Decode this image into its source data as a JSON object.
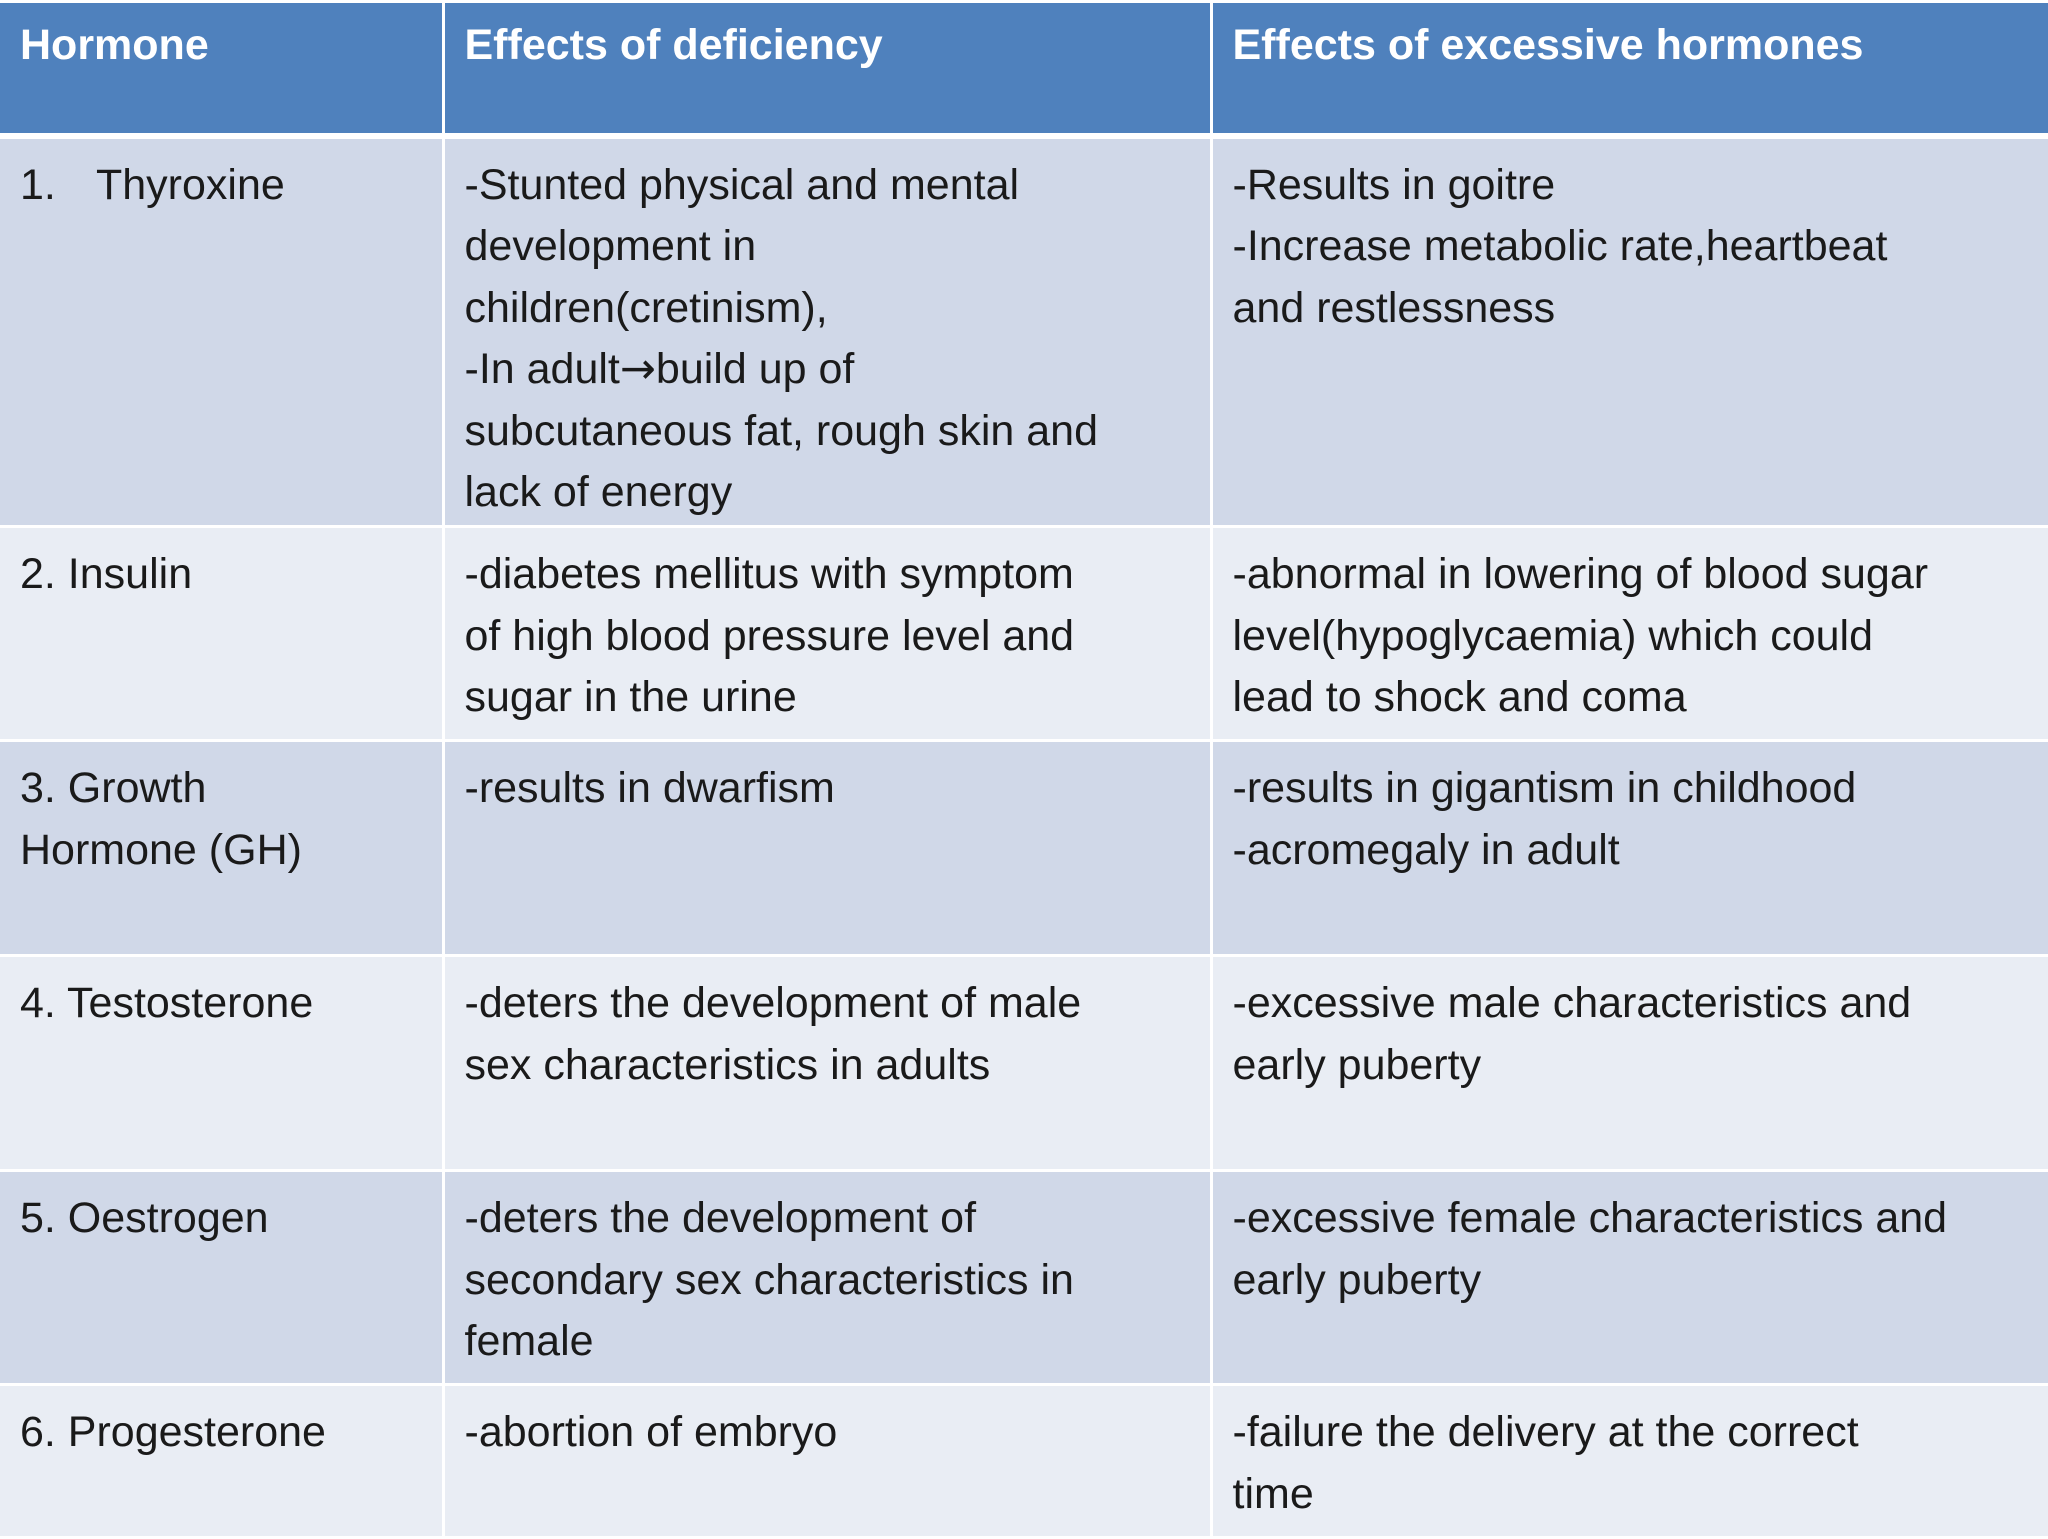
{
  "table": {
    "headers": [
      "Hormone",
      "Effects of deficiency",
      "Effects of excessive hormones"
    ],
    "rows": [
      {
        "hormone_lines": [
          "Thyroxine"
        ],
        "hormone_number": "1.",
        "deficiency_lines": [
          "-Stunted physical and mental",
          "development in",
          "children(cretinism),",
          "-In adult",
          "build up of",
          "subcutaneous fat, rough skin and",
          "lack of energy"
        ],
        "deficiency_arrow": "→",
        "excess_lines": [
          "-Results in goitre",
          "-Increase metabolic rate,heartbeat",
          "and restlessness"
        ]
      },
      {
        "hormone_lines": [
          "2. Insulin"
        ],
        "deficiency_lines": [
          "-diabetes mellitus with symptom",
          "of high blood pressure level and",
          "sugar in the urine"
        ],
        "excess_lines": [
          "-abnormal in lowering of blood sugar",
          "level(hypoglycaemia) which could",
          "lead to shock and coma"
        ]
      },
      {
        "hormone_lines": [
          "3. Growth",
          "Hormone (GH)"
        ],
        "deficiency_lines": [
          "-results in dwarfism"
        ],
        "excess_lines": [
          "-results in gigantism in childhood",
          "-acromegaly in adult"
        ]
      },
      {
        "hormone_lines": [
          "4. Testosterone"
        ],
        "deficiency_lines": [
          "-deters the development of male",
          "sex characteristics in adults"
        ],
        "excess_lines": [
          "-excessive male characteristics and",
          "early puberty"
        ]
      },
      {
        "hormone_lines": [
          "5. Oestrogen"
        ],
        "deficiency_lines": [
          "-deters the development of",
          "secondary sex characteristics in",
          "female"
        ],
        "excess_lines": [
          "-excessive female characteristics and",
          "early puberty"
        ]
      },
      {
        "hormone_lines": [
          "6. Progesterone"
        ],
        "deficiency_lines": [
          "-abortion of embryo"
        ],
        "excess_lines": [
          "-failure the delivery at the correct",
          "time"
        ]
      }
    ]
  },
  "colors": {
    "header_bg": "#4f81bd",
    "band_dark": "#d0d8e8",
    "band_light": "#e9edf4",
    "text": "#1a1a1a",
    "header_text": "#ffffff"
  }
}
